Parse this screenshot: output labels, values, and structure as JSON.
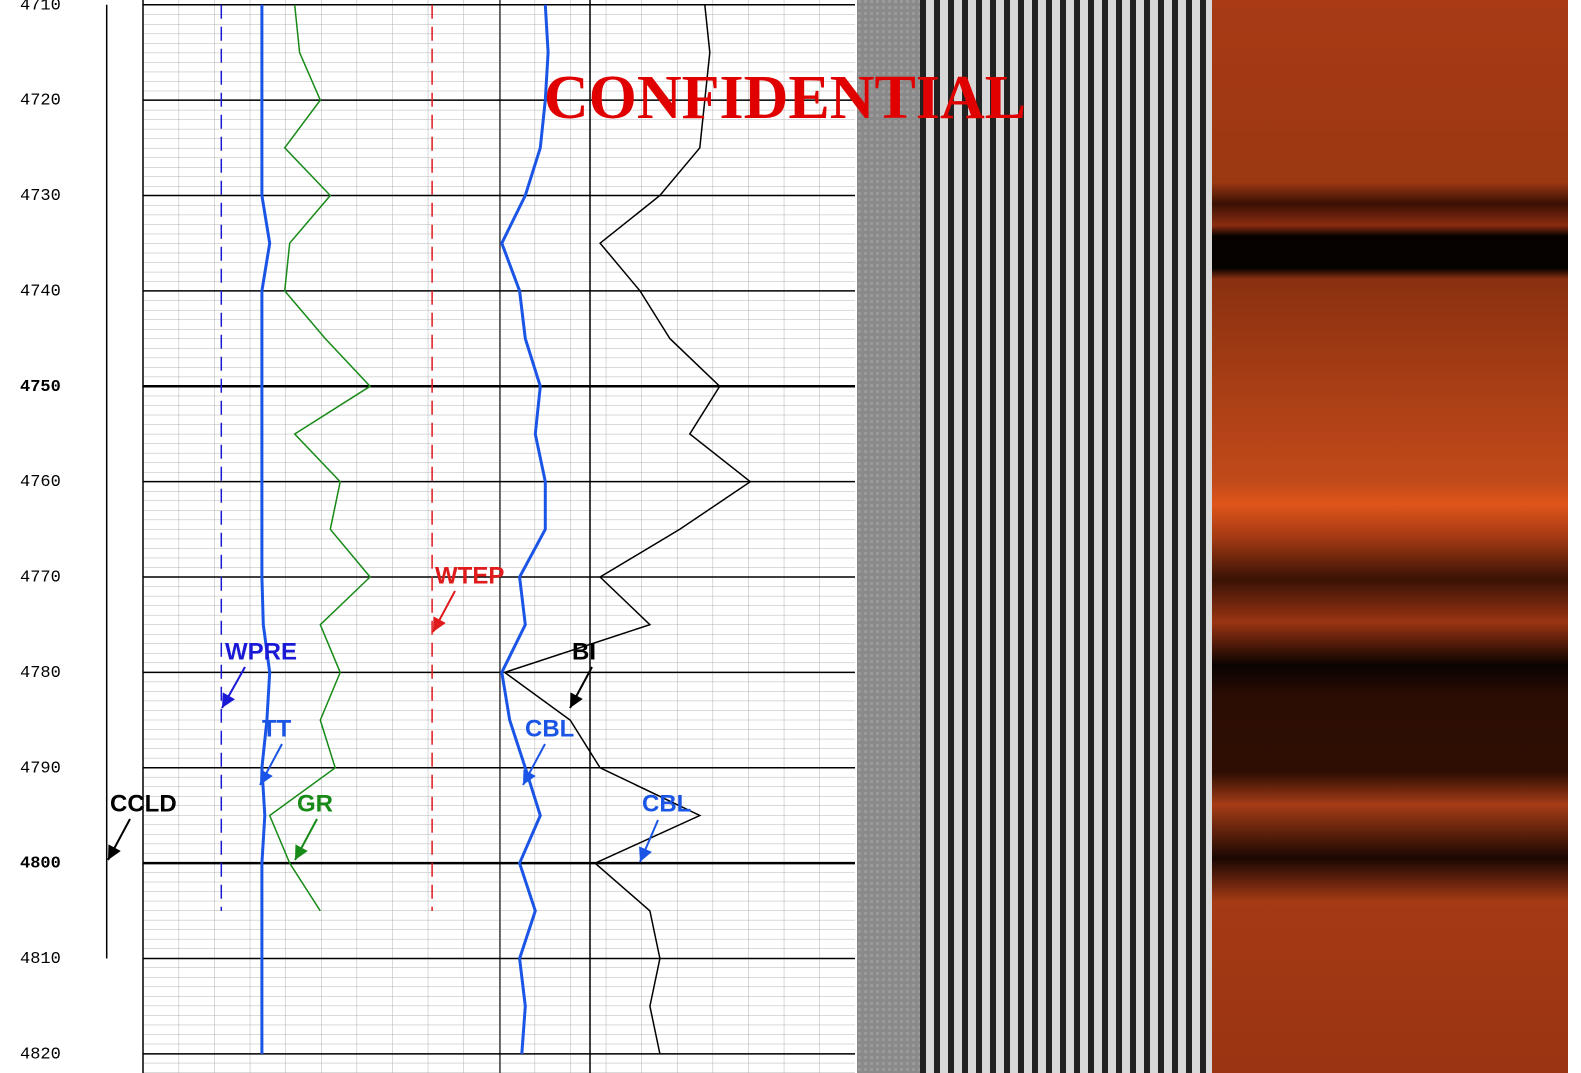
{
  "chart_data": {
    "type": "well-log",
    "watermark": "CONFIDENTIAL",
    "ylim": [
      4709.5,
      4822
    ],
    "yticks": [
      4710,
      4720,
      4730,
      4740,
      4750,
      4760,
      4770,
      4780,
      4790,
      4800,
      4810,
      4820
    ],
    "xlim": [
      0,
      100
    ],
    "grid": true,
    "depth": [
      4710,
      4715,
      4720,
      4725,
      4730,
      4735,
      4740,
      4745,
      4750,
      4755,
      4760,
      4765,
      4770,
      4775,
      4780,
      4785,
      4790,
      4795,
      4800,
      4805,
      4810,
      4815,
      4820
    ],
    "series": [
      {
        "name": "WPRE",
        "color": "#1a1ad6",
        "dash": true,
        "values": [
          11,
          11,
          11,
          11,
          11,
          11,
          11,
          11,
          11,
          11,
          11,
          11,
          11,
          11,
          11,
          11,
          11,
          11,
          11,
          11,
          null,
          null,
          null
        ]
      },
      {
        "name": "TT",
        "color": "#1a55e6",
        "values": [
          16.7,
          16.7,
          16.7,
          16.7,
          16.7,
          17.8,
          16.7,
          16.7,
          16.7,
          16.7,
          16.7,
          16.7,
          16.7,
          16.9,
          17.8,
          17.4,
          16.7,
          17.1,
          16.7,
          16.7,
          16.7,
          16.7,
          16.7
        ]
      },
      {
        "name": "GR",
        "color": "#178a17",
        "values": [
          21.3,
          22,
          24.9,
          19.9,
          26.3,
          20.6,
          19.9,
          25.6,
          31.9,
          21.3,
          27.7,
          26.3,
          31.9,
          24.9,
          27.7,
          24.9,
          27,
          17.8,
          20.6,
          24.9,
          null,
          null,
          null
        ]
      },
      {
        "name": "WTEP",
        "color": "#e01b1b",
        "dash": true,
        "values": [
          40.6,
          40.6,
          40.6,
          40.6,
          40.6,
          40.6,
          40.6,
          40.6,
          40.6,
          40.6,
          40.6,
          40.6,
          40.6,
          40.6,
          40.6,
          40.6,
          40.6,
          40.6,
          40.6,
          40.6,
          null,
          null,
          null
        ]
      },
      {
        "name": "CBL",
        "color": "#1a55e6",
        "values": [
          56.5,
          56.9,
          56.5,
          55.8,
          53.7,
          50.4,
          52.9,
          53.7,
          55.8,
          55.1,
          56.5,
          56.5,
          52.9,
          53.7,
          50.4,
          51.5,
          53.7,
          55.8,
          52.9,
          55.1,
          52.9,
          53.7,
          53.2
        ]
      },
      {
        "name": "BI",
        "color": "#000000",
        "values": [
          78.9,
          79.6,
          78.9,
          78.2,
          72.6,
          64.2,
          69.8,
          74,
          81,
          76.8,
          85.3,
          75.4,
          64.2,
          71.2,
          50.8,
          60,
          64.2,
          78.2,
          63.5,
          71.2,
          72.6,
          71.2,
          72.6
        ]
      },
      {
        "name": "CCLD",
        "color": "#000000",
        "values": [
          -5.1,
          -5.1,
          -5.1,
          -5.1,
          -5.1,
          -5.1,
          -5.1,
          -5.1,
          -5.1,
          -5.1,
          -5.1,
          -5.1,
          -5.1,
          -5.1,
          -5.1,
          -5.1,
          -5.1,
          -5.1,
          -5.1,
          -5.1,
          -5.1,
          null,
          null
        ]
      }
    ],
    "annotations": [
      {
        "text": "CBL"
      }
    ]
  }
}
